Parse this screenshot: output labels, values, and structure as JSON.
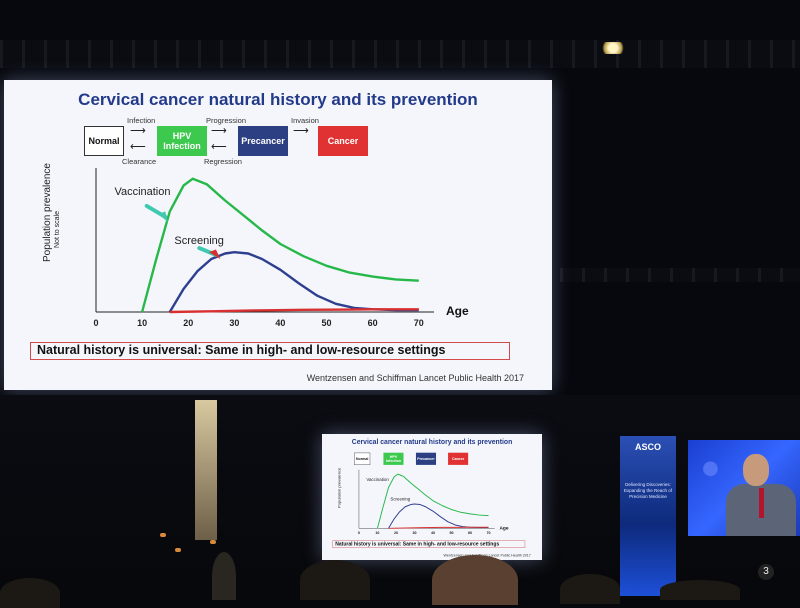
{
  "slide": {
    "title": "Cervical cancer natural history and its prevention",
    "flow": {
      "boxes": [
        {
          "label": "Normal",
          "color": "#ffffff"
        },
        {
          "label": "HPV Infection",
          "color": "#3cc94e"
        },
        {
          "label": "Precancer",
          "color": "#2c3f83"
        },
        {
          "label": "Cancer",
          "color": "#e03232"
        }
      ],
      "arrows_top": [
        "Infection",
        "Progression",
        "Invasion"
      ],
      "arrows_bottom": [
        "Clearance",
        "Regression"
      ]
    },
    "callout": "Natural history is universal: Same in high- and low-resource settings",
    "citation": "Wentzensen and Schiffman Lancet Public Health 2017"
  },
  "chart_data": {
    "type": "line",
    "ylabel": "Population prevalence",
    "ylabel_note": "Not to scale",
    "xlabel": "Age",
    "x_ticks": [
      0,
      10,
      20,
      30,
      40,
      50,
      60,
      70
    ],
    "xlim": [
      0,
      72
    ],
    "ylim": [
      0,
      1
    ],
    "annotations": [
      {
        "text": "Vaccination",
        "target_series": "green"
      },
      {
        "text": "Screening",
        "target_series": "blue"
      }
    ],
    "series": [
      {
        "color": "#27b84a",
        "x": [
          10,
          13,
          16,
          19,
          21,
          24,
          28,
          32,
          36,
          40,
          45,
          50,
          55,
          60,
          65,
          70
        ],
        "y": [
          0,
          0.38,
          0.74,
          0.93,
          0.98,
          0.94,
          0.82,
          0.71,
          0.6,
          0.5,
          0.41,
          0.34,
          0.29,
          0.26,
          0.24,
          0.23
        ]
      },
      {
        "color": "#2f3f8f",
        "x": [
          16,
          19,
          22,
          25,
          28,
          30,
          33,
          36,
          40,
          44,
          48,
          52,
          56,
          60,
          65,
          70
        ],
        "y": [
          0,
          0.17,
          0.3,
          0.39,
          0.43,
          0.44,
          0.43,
          0.39,
          0.31,
          0.21,
          0.12,
          0.06,
          0.03,
          0.02,
          0.015,
          0.015
        ]
      },
      {
        "color": "#d83030",
        "x": [
          16,
          25,
          35,
          45,
          55,
          60,
          70
        ],
        "y": [
          0,
          0.005,
          0.012,
          0.016,
          0.018,
          0.02,
          0.02
        ]
      }
    ]
  },
  "stage": {
    "banner_logo": "ASCO",
    "banner_tagline": "Delivering Discoveries: Expanding the Reach of Precision Medicine",
    "podium_number": "3"
  }
}
